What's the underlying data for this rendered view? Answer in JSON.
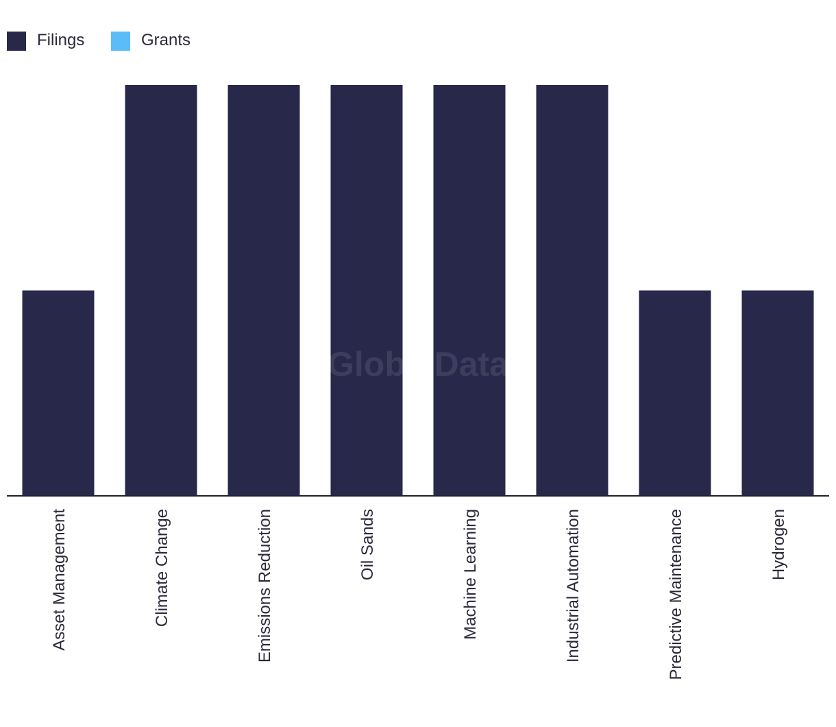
{
  "chart_data": {
    "type": "bar",
    "categories": [
      "Asset Management",
      "Climate Change",
      "Emissions Reduction",
      "Oil Sands",
      "Machine Learning",
      "Industrial Automation",
      "Predictive Maintenance",
      "Hydrogen"
    ],
    "series": [
      {
        "name": "Filings",
        "color": "#27284a",
        "values": [
          1,
          2,
          2,
          2,
          2,
          2,
          1,
          1
        ]
      },
      {
        "name": "Grants",
        "color": "#5bbcf8",
        "values": [
          0,
          0,
          0,
          0,
          0,
          0,
          0,
          0
        ]
      }
    ],
    "ylim": [
      0,
      2
    ],
    "grid": false,
    "legend_position": "top-left",
    "watermark": "GlobalData"
  }
}
